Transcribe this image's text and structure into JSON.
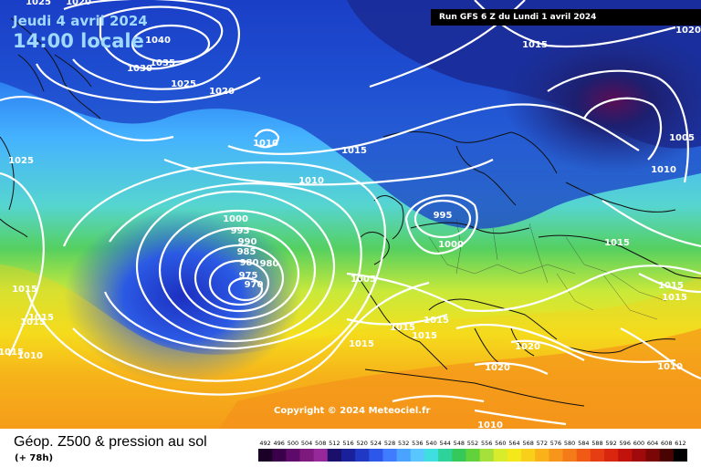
{
  "header": {
    "date_text": "Jeudi 4 avril 2024",
    "time_text": "14:00 locale",
    "run_text": "Run GFS 6 Z du Lundi 1 avril 2024"
  },
  "copyright": "Copyright © 2024 Meteociel.fr",
  "footer": {
    "title": "Géop. Z500 & pression au sol",
    "subtitle": "(+ 78h)"
  },
  "colors": {
    "z500_low": "#0b1a8f",
    "z500_mid": "#58c9ff",
    "z500_green": "#3fd052",
    "z500_yellow": "#f5e81a",
    "z500_orange": "#f58a1a",
    "z500_high": "#000000",
    "isobar": "#ffffff"
  },
  "scale": {
    "values": [
      "492",
      "496",
      "500",
      "504",
      "508",
      "512",
      "516",
      "520",
      "524",
      "528",
      "532",
      "536",
      "540",
      "544",
      "548",
      "552",
      "556",
      "560",
      "564",
      "568",
      "572",
      "576",
      "580",
      "584",
      "588",
      "592",
      "596",
      "600",
      "604",
      "608",
      "612"
    ],
    "colors": [
      "#1a0027",
      "#3a0049",
      "#5e0a6a",
      "#7e1a7e",
      "#96289a",
      "#1a0f6a",
      "#1a1f9a",
      "#2038c4",
      "#2d57e8",
      "#3f7cff",
      "#4aa4ff",
      "#5ac6ff",
      "#3fdfe0",
      "#2ed39b",
      "#35c95a",
      "#62d23a",
      "#a6e03a",
      "#d9ec2b",
      "#f5e81a",
      "#f9cf1a",
      "#f9b21a",
      "#f7961a",
      "#f57a18",
      "#f05a14",
      "#e63d12",
      "#d8260f",
      "#c2120c",
      "#a10a0a",
      "#7a0606",
      "#4a0303",
      "#000000"
    ]
  },
  "isobar_labels": [
    "1040",
    "1035",
    "1030",
    "1025",
    "1020",
    "1025",
    "1020",
    "1015",
    "1020",
    "1010",
    "1015",
    "1010",
    "1005",
    "1010",
    "1025",
    "1000",
    "995",
    "990",
    "985",
    "980",
    "980",
    "975",
    "970",
    "995",
    "1000",
    "1005",
    "1015",
    "1015",
    "1015",
    "1015",
    "1015",
    "1015",
    "1015",
    "1010",
    "1015",
    "1015",
    "1020",
    "1020",
    "1015",
    "1015",
    "1010",
    "1010"
  ]
}
